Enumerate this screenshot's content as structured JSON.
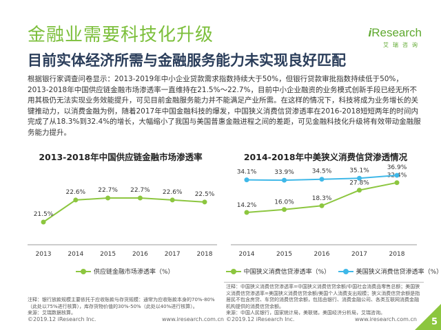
{
  "title": "金融业需要科技化升级",
  "subtitle": "目前实体经济所需与金融服务能力未实现良好匹配",
  "logo": {
    "prefix": "i",
    "word": "Research",
    "sub": "艾瑞咨询"
  },
  "body_text": "根据银行家调查问卷显示：2013-2019年中小企业贷款需求指数持续大于50%，但银行贷款审批指数持续低于50%，2013-2018年中国供应链金融市场渗透率一直维持在21.5%～22.7%，目前中小企业融资的业务模式创新手段已经无所不用其极仍无法实现业务效能提升，可见目前金融服务能力并不能满足产业所需。在这样的情况下，科技将成为业务增长的关键推动力，以消费金融为例，随着2017年中国金融科技的爆发，中国狭义消费信贷渗透率在2016-2018短短两年的时间内完成了从18.3%到32.4%的增长，大幅缩小了我国与美国普惠金融进程之间的差距，可见金融科技化升级将有效带动金融服务能力提升。",
  "colors": {
    "green": "#8cc63f",
    "blue": "#3fb8e8",
    "title_green": "#7cbf3b"
  },
  "chart_data": [
    {
      "type": "line",
      "title": "2013-2018年中国供应链金融市场渗透率",
      "categories": [
        "2013",
        "2014",
        "2015",
        "2016",
        "2017",
        "2018"
      ],
      "series": [
        {
          "name": "供应链金融市场渗透率（%）",
          "values": [
            21.5,
            22.6,
            22.7,
            22.7,
            22.6,
            22.5
          ],
          "labels": [
            "21.5%",
            "22.6%",
            "22.7%",
            "22.7%",
            "22.6%",
            "22.5%"
          ],
          "color": "#8cc63f"
        }
      ]
    },
    {
      "type": "line",
      "title": "2014-2018年中美狭义消费信贷渗透情况",
      "categories": [
        "2014",
        "2015",
        "2016",
        "2017",
        "2018"
      ],
      "series": [
        {
          "name": "中国狭义消费信贷渗透率（%）",
          "values": [
            14.2,
            16.0,
            18.3,
            27.8,
            32.4
          ],
          "labels": [
            "14.2%",
            "16.0%",
            "18.3%",
            "27.8%",
            "32.4%"
          ],
          "color": "#8cc63f"
        },
        {
          "name": "美国狭义消费信贷渗透率（%）",
          "values": [
            34.1,
            33.9,
            34.5,
            35.1,
            36.9
          ],
          "labels": [
            "34.1%",
            "33.9%",
            "34.5%",
            "35.1%",
            "36.9%"
          ],
          "color": "#3fb8e8"
        }
      ]
    }
  ],
  "notes": {
    "left": "注释：银行放款规模主要依托于应收账款与存货规模：通常为应收账款本身的70%-80%（此处以75%进行核算），库存货物价值的30%-50%（此处以40%进行核算）。\n来源：艾瑞数据核算。",
    "right": "注释：中国狭义消费信贷渗透率=中国狭义消费信贷余额/中国社会消费品零售总额；美国狭义消费信贷渗透率=美国狭义消费信贷余额/美国个人消费支出规模；狭义消费信贷余额是指居民不包含房贷、车贷的消费信贷余额，包括由银行、消费金融公司、各类互联网消费金融机构提供的消费信贷余额。\n来源：中国人民银行，国家统计局，美联储，美国经济分析局，艾瑞咨询。"
  },
  "footer": {
    "left_copyright": "©2019.12 iResearch Inc.",
    "left_url": "www.iresearch.com.cn",
    "right_copyright": "©2019.12 iResearch Inc.",
    "right_url": "www.iresearch.com.cn",
    "page": "5"
  }
}
